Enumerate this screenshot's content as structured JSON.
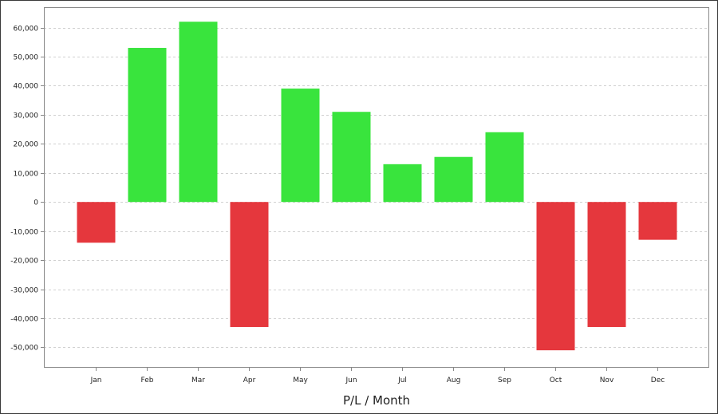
{
  "chart_data": {
    "type": "bar",
    "title": "",
    "xlabel": "P/L / Month",
    "ylabel": "",
    "categories": [
      "Jan",
      "Feb",
      "Mar",
      "Apr",
      "May",
      "Jun",
      "Jul",
      "Aug",
      "Sep",
      "Oct",
      "Nov",
      "Dec"
    ],
    "values": [
      -14000,
      53000,
      62000,
      -43000,
      39000,
      31000,
      13000,
      15500,
      24000,
      -51000,
      -43000,
      -13000
    ],
    "ylim": [
      -57000,
      67000
    ],
    "yticks": [
      60000,
      50000,
      40000,
      30000,
      20000,
      10000,
      0,
      -10000,
      -20000,
      -30000,
      -40000,
      -50000
    ],
    "ytick_labels": [
      "60,000",
      "50,000",
      "40,000",
      "30,000",
      "20,000",
      "10,000",
      "0",
      "-10,000",
      "-20,000",
      "-30,000",
      "-40,000",
      "-50,000"
    ],
    "grid": true,
    "legend": "none",
    "colors": {
      "positive": "#39e43d",
      "negative": "#e5373d",
      "grid": "#d0d0d0",
      "axis": "#888888"
    }
  }
}
